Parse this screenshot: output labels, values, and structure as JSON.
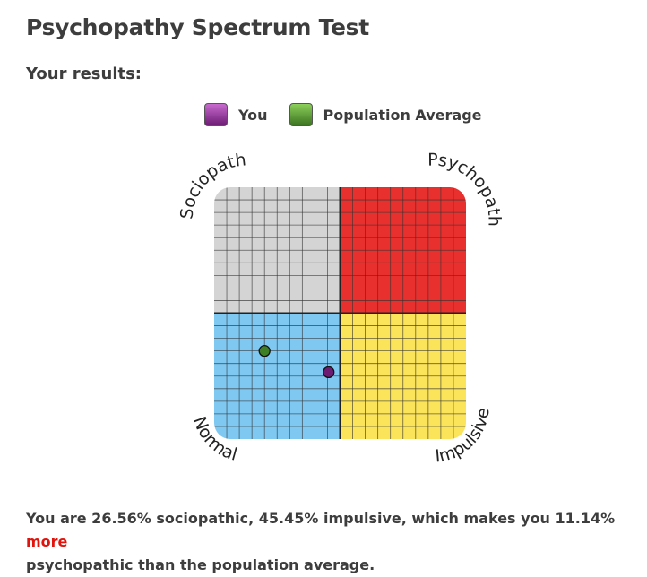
{
  "page": {
    "title": "Psychopathy Spectrum Test",
    "subtitle": "Your results:"
  },
  "legend": {
    "you_label": "You",
    "avg_label": "Population Average"
  },
  "colors": {
    "sociopath": "#d4d4d4",
    "psychopath": "#e8312f",
    "normal": "#7ec8f2",
    "impulsive": "#fbe45a",
    "you": "#6d1c74",
    "average": "#3f7f24"
  },
  "chart_data": {
    "type": "scatter",
    "quadrants": [
      "Sociopath",
      "Psychopath",
      "Normal",
      "Impulsive"
    ],
    "corner_labels": {
      "top_left": "Sociopath",
      "top_right": "Psychopath",
      "bottom_left": "Normal",
      "bottom_right": "Impulsive"
    },
    "xlabel": "",
    "ylabel": "",
    "xlim": [
      0,
      100
    ],
    "ylim": [
      0,
      100
    ],
    "grid": true,
    "series": [
      {
        "name": "You",
        "x": 45.45,
        "y": 26.56,
        "color": "#6d1c74"
      },
      {
        "name": "Population Average",
        "x": 20,
        "y": 35,
        "color": "#3f7f24"
      }
    ]
  },
  "summary": {
    "part1": "You are 26.56% sociopathic, 45.45% impulsive, which makes you 11.14%",
    "highlight": "more",
    "part2": "psychopathic than the population average."
  }
}
